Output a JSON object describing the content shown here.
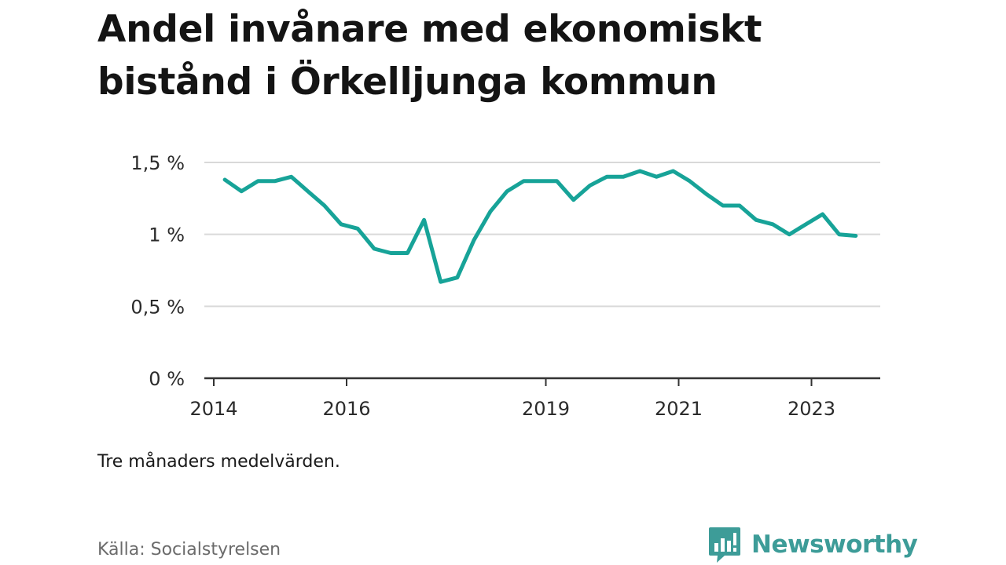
{
  "title": "Andel invånare med ekonomiskt bistånd i Örkelljunga kommun",
  "note": "Tre månaders medelvärden.",
  "source": "Källa: Socialstyrelsen",
  "brand": "Newsworthy",
  "colors": {
    "line": "#17a398",
    "grid": "#d9d9d9",
    "axis": "#333333",
    "brand": "#3d9c98"
  },
  "chart_data": {
    "type": "line",
    "title": "Andel invånare med ekonomiskt bistånd i Örkelljunga kommun",
    "xlabel": "",
    "ylabel": "",
    "ylim": [
      0,
      1.5
    ],
    "xlim": [
      "2014-01",
      "2024-01"
    ],
    "grid": true,
    "y_ticks": [
      {
        "value": 0,
        "label": "0 %"
      },
      {
        "value": 0.5,
        "label": "0,5 %"
      },
      {
        "value": 1,
        "label": "1 %"
      },
      {
        "value": 1.5,
        "label": "1,5 %"
      }
    ],
    "x_ticks": [
      {
        "value": "2014-01",
        "label": "2014"
      },
      {
        "value": "2016-01",
        "label": "2016"
      },
      {
        "value": "2019-01",
        "label": "2019"
      },
      {
        "value": "2021-01",
        "label": "2021"
      },
      {
        "value": "2023-01",
        "label": "2023"
      }
    ],
    "series": [
      {
        "x": [
          "2014-03",
          "2014-06",
          "2014-09",
          "2014-12",
          "2015-03",
          "2015-06",
          "2015-09",
          "2015-12",
          "2016-03",
          "2016-06",
          "2016-09",
          "2016-12",
          "2017-03",
          "2017-06",
          "2017-09",
          "2017-12",
          "2018-03",
          "2018-06",
          "2018-09",
          "2018-12",
          "2019-03",
          "2019-06",
          "2019-09",
          "2019-12",
          "2020-03",
          "2020-06",
          "2020-09",
          "2020-12",
          "2021-03",
          "2021-06",
          "2021-09",
          "2021-12",
          "2022-03",
          "2022-06",
          "2022-09",
          "2022-12",
          "2023-03",
          "2023-06",
          "2023-09"
        ],
        "y": [
          1.38,
          1.3,
          1.37,
          1.37,
          1.4,
          1.3,
          1.2,
          1.07,
          1.04,
          0.9,
          0.87,
          0.87,
          1.1,
          0.67,
          0.7,
          0.96,
          1.16,
          1.3,
          1.37,
          1.37,
          1.37,
          1.24,
          1.34,
          1.4,
          1.4,
          1.44,
          1.4,
          1.44,
          1.37,
          1.28,
          1.2,
          1.2,
          1.1,
          1.07,
          1.0,
          1.07,
          1.14,
          1.0,
          0.99
        ]
      }
    ]
  }
}
